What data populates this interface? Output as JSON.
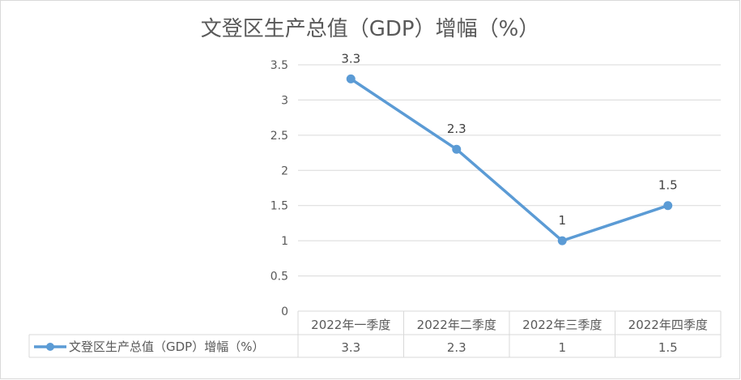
{
  "chart_data": {
    "type": "line",
    "title": "文登区生产总值（GDP）增幅（%）",
    "categories": [
      "2022年一季度",
      "2022年二季度",
      "2022年三季度",
      "2022年四季度"
    ],
    "series": [
      {
        "name": "文登区生产总值（GDP）增幅（%）",
        "values": [
          3.3,
          2.3,
          1,
          1.5
        ]
      }
    ],
    "value_labels": [
      "3.3",
      "2.3",
      "1",
      "1.5"
    ],
    "ylim": [
      0,
      3.5
    ],
    "yticks": [
      "0",
      "0.5",
      "1",
      "1.5",
      "2",
      "2.5",
      "3",
      "3.5"
    ],
    "grid": true,
    "legend": "data-table-bottom",
    "colors": {
      "series": "#5B9BD5",
      "grid": "#D9D9D9",
      "text": "#595959",
      "border": "#D9D9D9"
    }
  }
}
